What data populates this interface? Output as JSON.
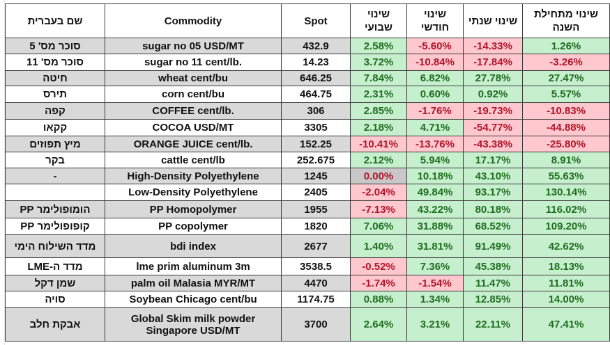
{
  "table": {
    "headers": {
      "hebrew_name": "שם בעברית",
      "commodity": "Commodity",
      "spot": "Spot",
      "weekly": [
        "שינוי",
        "שבועי"
      ],
      "monthly": [
        "שינוי",
        "חודשי"
      ],
      "yearly": "שינוי שנתי",
      "ytd": [
        "שינוי מתחילת",
        "השנה"
      ]
    },
    "rows": [
      {
        "heb": "סוכר מס' 5",
        "commodity": [
          "sugar no 05 USD/MT"
        ],
        "spot": "432.9",
        "weekly": "2.58%",
        "monthly": "-5.60%",
        "yearly": "-14.33%",
        "ytd": "1.26%"
      },
      {
        "heb": "סוכר מס' 11",
        "commodity": [
          "sugar no 11 cent/lb."
        ],
        "spot": "14.23",
        "weekly": "3.72%",
        "monthly": "-10.84%",
        "yearly": "-17.84%",
        "ytd": "-3.26%"
      },
      {
        "heb": "חיטה",
        "commodity": [
          "wheat cent/bu"
        ],
        "spot": "646.25",
        "weekly": "7.84%",
        "monthly": "6.82%",
        "yearly": "27.78%",
        "ytd": "27.47%"
      },
      {
        "heb": "תירס",
        "commodity": [
          "corn cent/bu"
        ],
        "spot": "464.75",
        "weekly": "2.31%",
        "monthly": "0.60%",
        "yearly": "0.92%",
        "ytd": "5.57%"
      },
      {
        "heb": "קפה",
        "commodity": [
          "COFFEE cent/lb."
        ],
        "spot": "306",
        "weekly": "2.85%",
        "monthly": "-1.76%",
        "yearly": "-19.73%",
        "ytd": "-10.83%"
      },
      {
        "heb": "קקאו",
        "commodity": [
          "COCOA USD/MT"
        ],
        "spot": "3305",
        "weekly": "2.18%",
        "monthly": "4.71%",
        "yearly": "-54.77%",
        "ytd": "-44.88%"
      },
      {
        "heb": "מיץ תפוזים",
        "commodity": [
          "ORANGE JUICE cent/lb."
        ],
        "spot": "152.25",
        "weekly": "-10.41%",
        "monthly": "-13.76%",
        "yearly": "-43.38%",
        "ytd": "-25.80%"
      },
      {
        "heb": "בקר",
        "commodity": [
          "cattle cent/lb"
        ],
        "spot": "252.675",
        "weekly": "2.12%",
        "monthly": "5.94%",
        "yearly": "17.17%",
        "ytd": "8.91%"
      },
      {
        "heb": "-",
        "commodity": [
          "High-Density Polyethylene"
        ],
        "spot": "1245",
        "weekly": "0.00%",
        "monthly": "10.18%",
        "yearly": "43.10%",
        "ytd": "55.63%"
      },
      {
        "heb": "",
        "commodity": [
          "Low-Density Polyethylene"
        ],
        "spot": "2405",
        "weekly": "-2.04%",
        "monthly": "49.84%",
        "yearly": "93.17%",
        "ytd": "130.14%"
      },
      {
        "heb": "הומופולימר PP",
        "commodity": [
          "PP Homopolymer"
        ],
        "spot": "1955",
        "weekly": "-7.13%",
        "monthly": "43.22%",
        "yearly": "80.18%",
        "ytd": "116.02%"
      },
      {
        "heb": "קופופולימר PP",
        "commodity": [
          "PP copolymer"
        ],
        "spot": "1820",
        "weekly": "7.06%",
        "monthly": "31.88%",
        "yearly": "68.52%",
        "ytd": "109.20%"
      },
      {
        "heb": "מדד השילוח הימי",
        "commodity": [
          "bdi index"
        ],
        "spot": "2677",
        "weekly": "1.40%",
        "monthly": "31.81%",
        "yearly": "91.49%",
        "ytd": "42.62%"
      },
      {
        "heb": "מדד ה-LME",
        "commodity": [
          "lme prim aluminum 3m"
        ],
        "spot": "3538.5",
        "weekly": "-0.52%",
        "monthly": "7.36%",
        "yearly": "45.38%",
        "ytd": "18.13%"
      },
      {
        "heb": "שמן דקל",
        "commodity": [
          "palm oil Malasia MYR/MT"
        ],
        "spot": "4470",
        "weekly": "-1.74%",
        "monthly": "-1.54%",
        "yearly": "11.47%",
        "ytd": "11.81%"
      },
      {
        "heb": "סויה",
        "commodity": [
          "Soybean Chicago cent/bu"
        ],
        "spot": "1174.75",
        "weekly": "0.88%",
        "monthly": "1.34%",
        "yearly": "12.85%",
        "ytd": "14.00%"
      },
      {
        "heb": "אבקת חלב",
        "commodity": [
          "Global Skim milk powder",
          "Singapore USD/MT"
        ],
        "spot": "3700",
        "weekly": "2.64%",
        "monthly": "3.21%",
        "yearly": "22.11%",
        "ytd": "47.41%"
      }
    ]
  },
  "colors": {
    "positive_fill": "#c6efce",
    "positive_text": "#1e6e1e",
    "negative_fill": "#ffc7ce",
    "negative_text": "#b0152a",
    "zero_fill": "#c8c8c8",
    "label_grey": "#d9d9d9"
  }
}
